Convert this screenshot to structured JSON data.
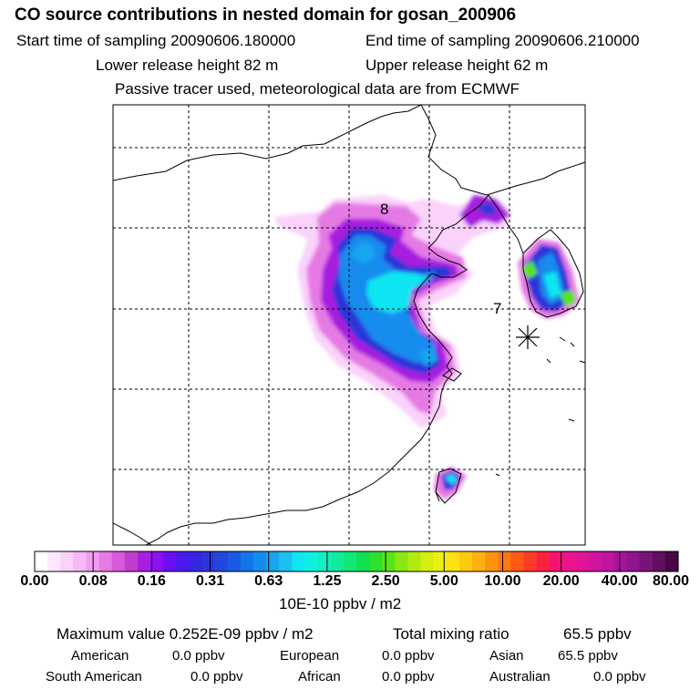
{
  "title": "CO  source contributions in nested domain for gosan_200906",
  "header": {
    "start_label": "Start time of sampling 20090606.180000",
    "end_label": "End time of sampling 20090606.210000",
    "lower_label": "Lower release height   82 m",
    "upper_label": "Upper release height   62 m",
    "tracer_note": "Passive tracer used, meteorological data are from ECMWF"
  },
  "map": {
    "annotations": [
      "8",
      "7"
    ],
    "receptor_marker": "asterisk"
  },
  "colorbar": {
    "ticks": [
      "0.00",
      "0.08",
      "0.16",
      "0.31",
      "0.63",
      "1.25",
      "2.50",
      "5.00",
      "10.00",
      "20.00",
      "40.00",
      "80.00"
    ],
    "unit": "10E-10 ppbv / m2",
    "colors": [
      "#ffffff",
      "#fde8fd",
      "#fad2fa",
      "#f5b9f5",
      "#f09cf0",
      "#e57ae5",
      "#d85ad8",
      "#c43ccc",
      "#a81ee0",
      "#8c10f0",
      "#6a10f0",
      "#4b18ee",
      "#3626e0",
      "#2c36d8",
      "#2048e0",
      "#185ce6",
      "#1474ea",
      "#148cee",
      "#18a6f0",
      "#1cc0f0",
      "#10e6f0",
      "#10f0e0",
      "#10f0c0",
      "#10ec9c",
      "#10e878",
      "#10e050",
      "#2ce02c",
      "#58e418",
      "#88e814",
      "#b0ec10",
      "#d4f010",
      "#f0f010",
      "#fde010",
      "#fdca10",
      "#fdb010",
      "#fd9410",
      "#fd7810",
      "#fd5a18",
      "#fd3c28",
      "#fa2040",
      "#f41470",
      "#ec148c",
      "#e01494",
      "#d0149c",
      "#c014a0",
      "#a8149c",
      "#901490",
      "#781478",
      "#60105c",
      "#480844"
    ]
  },
  "summary": {
    "max_label": "Maximum value  0.252E-09 ppbv / m2",
    "total_label": "Total mixing ratio",
    "total_value": "65.5 ppbv",
    "sources": [
      {
        "name": "American",
        "value": "0.0 ppbv"
      },
      {
        "name": "European",
        "value": "0.0 ppbv"
      },
      {
        "name": "Asian",
        "value": "65.5 ppbv"
      },
      {
        "name": "South American",
        "value": "0.0 ppbv"
      },
      {
        "name": "African",
        "value": "0.0 ppbv"
      },
      {
        "name": "Australian",
        "value": "0.0 ppbv"
      }
    ]
  }
}
